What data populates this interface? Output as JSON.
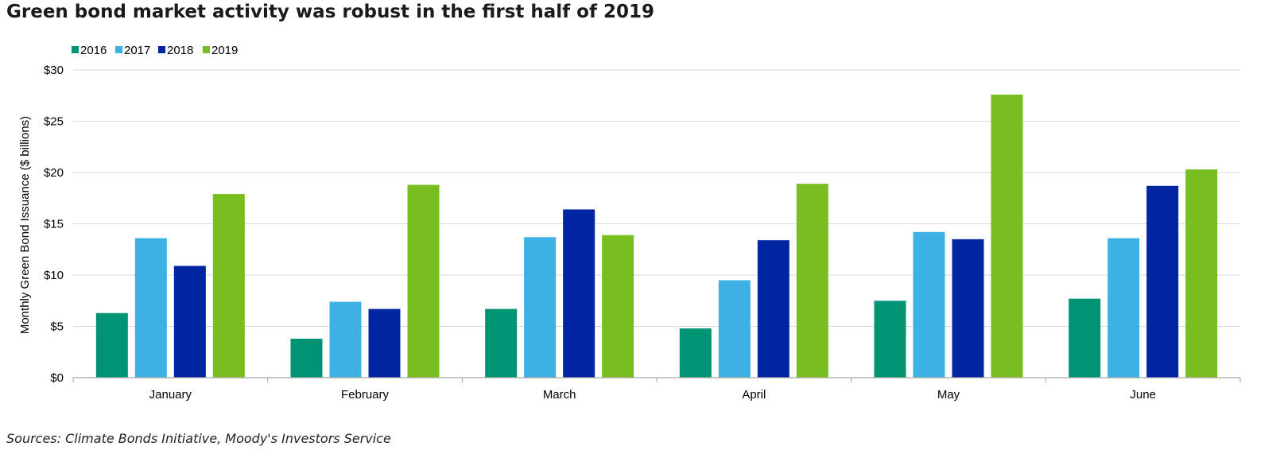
{
  "title": "Green bond market activity was robust in the first half of 2019",
  "source": "Sources: Climate Bonds Initiative, Moody's Investors Service",
  "chart_data": {
    "type": "bar",
    "title": "Green bond market activity was robust in the first half of 2019",
    "xlabel": "",
    "ylabel": "Monthly Green Bond Issuance ($ billions)",
    "ylim": [
      0,
      30
    ],
    "yticks": [
      0,
      5,
      10,
      15,
      20,
      25,
      30
    ],
    "ytick_labels": [
      "$0",
      "$5",
      "$10",
      "$15",
      "$20",
      "$25",
      "$30"
    ],
    "grid": true,
    "legend_position": "top-left",
    "categories": [
      "January",
      "February",
      "March",
      "April",
      "May",
      "June"
    ],
    "series": [
      {
        "name": "2016",
        "color": "#009474",
        "values": [
          6.3,
          3.8,
          6.7,
          4.8,
          7.5,
          7.7
        ]
      },
      {
        "name": "2017",
        "color": "#3eb1e4",
        "values": [
          13.6,
          7.4,
          13.7,
          9.5,
          14.2,
          13.6
        ]
      },
      {
        "name": "2018",
        "color": "#0025a0",
        "values": [
          10.9,
          6.7,
          16.4,
          13.4,
          13.5,
          18.7
        ]
      },
      {
        "name": "2019",
        "color": "#78be20",
        "values": [
          17.9,
          18.8,
          13.9,
          18.9,
          27.6,
          20.3
        ]
      }
    ]
  }
}
